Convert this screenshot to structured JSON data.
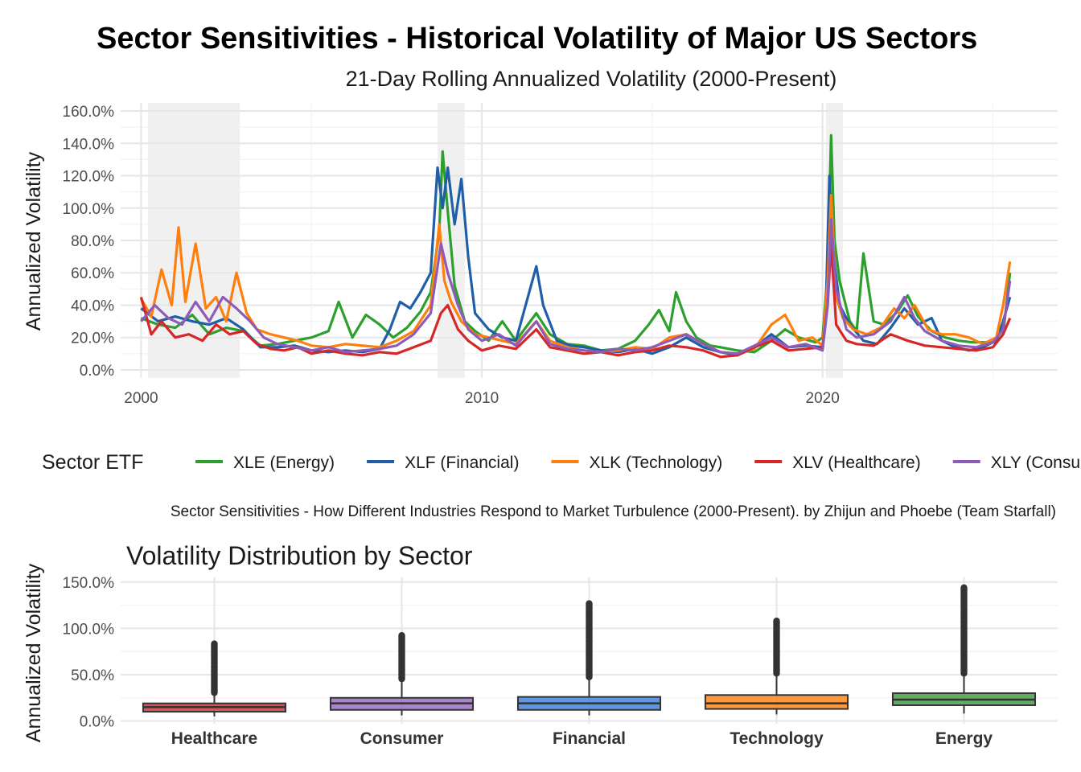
{
  "title": "Sector Sensitivities - Historical Volatility of Major US Sectors",
  "subtitle": "21-Day Rolling Annualized Volatility (2000-Present)",
  "caption": "Sector Sensitivities - How Different Industries Respond to Market Turbulence (2000-Present). by Zhijun and Phoebe (Team Starfall)",
  "legend_title": "Sector ETF",
  "chart_data": [
    {
      "type": "line",
      "ylabel": "Annualized Volatility",
      "xlim": [
        1999.4,
        2026.9
      ],
      "ylim": [
        -5,
        165
      ],
      "y_ticks": [
        0,
        20,
        40,
        60,
        80,
        100,
        120,
        140,
        160
      ],
      "y_tick_labels": [
        "0.0%",
        "20.0%",
        "40.0%",
        "60.0%",
        "80.0%",
        "100.0%",
        "120.0%",
        "140.0%",
        "160.0%"
      ],
      "x_ticks": [
        2000,
        2010,
        2020
      ],
      "x_tick_labels": [
        "2000",
        "2010",
        "2020"
      ],
      "grid": true,
      "legend_position": "bottom",
      "shaded_periods": [
        [
          2000.2,
          2002.9
        ],
        [
          2008.7,
          2009.5
        ],
        [
          2020.1,
          2020.6
        ]
      ],
      "series": [
        {
          "name": "XLE (Energy)",
          "color": "#2ca02c",
          "x": [
            2000.0,
            2000.5,
            2001.0,
            2001.5,
            2002.0,
            2002.5,
            2003.0,
            2003.5,
            2004.0,
            2004.5,
            2005.0,
            2005.5,
            2005.8,
            2006.2,
            2006.6,
            2007.0,
            2007.4,
            2007.8,
            2008.2,
            2008.5,
            2008.75,
            2008.85,
            2009.0,
            2009.2,
            2009.5,
            2009.8,
            2010.2,
            2010.6,
            2011.0,
            2011.6,
            2012.0,
            2012.5,
            2013.0,
            2013.5,
            2014.0,
            2014.5,
            2014.9,
            2015.2,
            2015.5,
            2015.7,
            2016.0,
            2016.3,
            2016.7,
            2017.0,
            2017.5,
            2018.0,
            2018.5,
            2018.9,
            2019.3,
            2019.8,
            2020.0,
            2020.15,
            2020.25,
            2020.35,
            2020.5,
            2020.8,
            2021.0,
            2021.2,
            2021.5,
            2021.8,
            2022.2,
            2022.5,
            2022.8,
            2023.2,
            2023.6,
            2024.0,
            2024.4,
            2024.8,
            2025.1,
            2025.3,
            2025.5
          ],
          "y": [
            32,
            28,
            26,
            34,
            22,
            26,
            24,
            15,
            16,
            18,
            20,
            24,
            42,
            20,
            34,
            28,
            20,
            26,
            36,
            48,
            85,
            135,
            98,
            52,
            30,
            24,
            18,
            30,
            18,
            35,
            22,
            16,
            15,
            12,
            13,
            18,
            28,
            37,
            24,
            48,
            30,
            20,
            15,
            14,
            12,
            11,
            18,
            25,
            20,
            17,
            20,
            60,
            145,
            80,
            55,
            30,
            24,
            72,
            30,
            28,
            36,
            46,
            33,
            24,
            20,
            18,
            17,
            17,
            17,
            22,
            60
          ]
        },
        {
          "name": "XLF (Financial)",
          "color": "#1f5fa8",
          "x": [
            2000.0,
            2000.5,
            2001.0,
            2001.5,
            2002.0,
            2002.5,
            2003.0,
            2003.5,
            2004.0,
            2004.5,
            2005.0,
            2005.5,
            2006.0,
            2006.5,
            2007.0,
            2007.3,
            2007.6,
            2007.9,
            2008.2,
            2008.5,
            2008.7,
            2008.85,
            2009.0,
            2009.2,
            2009.4,
            2009.6,
            2009.8,
            2010.2,
            2010.6,
            2011.0,
            2011.6,
            2011.8,
            2012.2,
            2012.6,
            2013.0,
            2013.5,
            2014.0,
            2014.5,
            2015.0,
            2015.5,
            2016.0,
            2016.5,
            2017.0,
            2017.5,
            2018.0,
            2018.5,
            2019.0,
            2019.5,
            2020.0,
            2020.1,
            2020.2,
            2020.3,
            2020.5,
            2020.8,
            2021.2,
            2021.6,
            2022.0,
            2022.4,
            2022.8,
            2023.2,
            2023.5,
            2023.9,
            2024.3,
            2024.7,
            2025.1,
            2025.3,
            2025.5
          ],
          "y": [
            38,
            30,
            33,
            30,
            28,
            32,
            25,
            14,
            14,
            15,
            12,
            11,
            12,
            11,
            13,
            25,
            42,
            38,
            48,
            60,
            125,
            100,
            125,
            90,
            118,
            70,
            35,
            25,
            20,
            18,
            64,
            40,
            18,
            15,
            14,
            12,
            11,
            13,
            10,
            14,
            20,
            14,
            11,
            9,
            14,
            22,
            14,
            15,
            14,
            40,
            120,
            75,
            40,
            28,
            18,
            16,
            26,
            38,
            28,
            32,
            18,
            14,
            12,
            14,
            18,
            30,
            45
          ]
        },
        {
          "name": "XLK (Technology)",
          "color": "#ff7f0e",
          "x": [
            2000.0,
            2000.3,
            2000.6,
            2000.9,
            2001.1,
            2001.3,
            2001.6,
            2001.9,
            2002.2,
            2002.5,
            2002.8,
            2003.1,
            2003.4,
            2003.8,
            2004.2,
            2004.6,
            2005.0,
            2005.5,
            2006.0,
            2006.5,
            2007.0,
            2007.5,
            2008.0,
            2008.5,
            2008.75,
            2008.9,
            2009.1,
            2009.4,
            2009.8,
            2010.2,
            2010.6,
            2011.0,
            2011.6,
            2012.0,
            2012.5,
            2013.0,
            2013.5,
            2014.0,
            2014.5,
            2015.0,
            2015.5,
            2016.0,
            2016.5,
            2017.0,
            2017.5,
            2018.0,
            2018.5,
            2018.9,
            2019.3,
            2019.7,
            2020.0,
            2020.15,
            2020.25,
            2020.4,
            2020.6,
            2020.9,
            2021.3,
            2021.7,
            2022.1,
            2022.4,
            2022.7,
            2023.1,
            2023.5,
            2023.9,
            2024.3,
            2024.7,
            2025.1,
            2025.3,
            2025.5
          ],
          "y": [
            44,
            33,
            62,
            40,
            88,
            42,
            78,
            38,
            45,
            30,
            60,
            35,
            25,
            22,
            20,
            18,
            15,
            14,
            16,
            15,
            14,
            18,
            24,
            40,
            90,
            55,
            42,
            30,
            22,
            20,
            18,
            16,
            30,
            18,
            14,
            12,
            11,
            12,
            14,
            13,
            20,
            22,
            16,
            11,
            10,
            13,
            28,
            34,
            18,
            20,
            15,
            55,
            108,
            45,
            32,
            25,
            22,
            26,
            38,
            32,
            40,
            25,
            22,
            22,
            20,
            16,
            20,
            40,
            67
          ]
        },
        {
          "name": "XLV (Healthcare)",
          "color": "#d62728",
          "x": [
            2000.0,
            2000.3,
            2000.6,
            2001.0,
            2001.4,
            2001.8,
            2002.2,
            2002.6,
            2003.0,
            2003.4,
            2003.8,
            2004.2,
            2004.6,
            2005.0,
            2005.5,
            2006.0,
            2006.5,
            2007.0,
            2007.5,
            2008.0,
            2008.5,
            2008.8,
            2009.0,
            2009.3,
            2009.6,
            2010.0,
            2010.5,
            2011.0,
            2011.6,
            2012.0,
            2012.5,
            2013.0,
            2013.5,
            2014.0,
            2014.5,
            2015.0,
            2015.5,
            2016.0,
            2016.5,
            2017.0,
            2017.5,
            2018.0,
            2018.5,
            2019.0,
            2019.5,
            2020.0,
            2020.15,
            2020.25,
            2020.4,
            2020.7,
            2021.0,
            2021.5,
            2022.0,
            2022.5,
            2023.0,
            2023.5,
            2024.0,
            2024.5,
            2025.0,
            2025.3,
            2025.5
          ],
          "y": [
            45,
            22,
            30,
            20,
            22,
            18,
            28,
            22,
            24,
            16,
            13,
            12,
            14,
            10,
            12,
            10,
            9,
            11,
            10,
            14,
            18,
            35,
            40,
            25,
            18,
            12,
            15,
            13,
            25,
            14,
            12,
            10,
            11,
            9,
            11,
            12,
            15,
            14,
            12,
            8,
            9,
            14,
            18,
            12,
            13,
            14,
            40,
            78,
            28,
            18,
            16,
            15,
            22,
            18,
            15,
            14,
            13,
            12,
            14,
            22,
            32
          ]
        },
        {
          "name": "XLY (Consumer)",
          "color": "#8e5cb8",
          "x": [
            2000.0,
            2000.4,
            2000.8,
            2001.2,
            2001.6,
            2002.0,
            2002.4,
            2002.8,
            2003.2,
            2003.6,
            2004.0,
            2004.5,
            2005.0,
            2005.5,
            2006.0,
            2006.5,
            2007.0,
            2007.5,
            2008.0,
            2008.5,
            2008.8,
            2009.0,
            2009.3,
            2009.6,
            2010.0,
            2010.5,
            2011.0,
            2011.6,
            2012.0,
            2012.5,
            2013.0,
            2013.5,
            2014.0,
            2014.5,
            2015.0,
            2015.5,
            2016.0,
            2016.5,
            2017.0,
            2017.5,
            2018.0,
            2018.5,
            2019.0,
            2019.5,
            2020.0,
            2020.15,
            2020.25,
            2020.4,
            2020.7,
            2021.0,
            2021.5,
            2022.0,
            2022.4,
            2022.7,
            2023.0,
            2023.5,
            2024.0,
            2024.5,
            2025.0,
            2025.3,
            2025.5
          ],
          "y": [
            30,
            40,
            32,
            28,
            42,
            30,
            45,
            38,
            30,
            20,
            16,
            14,
            12,
            14,
            11,
            12,
            13,
            15,
            22,
            35,
            78,
            60,
            40,
            25,
            18,
            22,
            15,
            30,
            16,
            13,
            12,
            11,
            13,
            12,
            14,
            18,
            22,
            16,
            11,
            10,
            15,
            20,
            14,
            16,
            12,
            40,
            93,
            50,
            25,
            20,
            22,
            30,
            45,
            32,
            24,
            18,
            15,
            14,
            17,
            25,
            55
          ]
        }
      ]
    },
    {
      "type": "box",
      "title": "Volatility Distribution by Sector",
      "ylabel": "Annualized Volatility",
      "ylim": [
        -3,
        155
      ],
      "y_ticks": [
        0,
        50,
        100,
        150
      ],
      "y_tick_labels": [
        "0.0%",
        "50.0%",
        "100.0%",
        "150.0%"
      ],
      "grid": true,
      "categories": [
        "Healthcare",
        "Consumer",
        "Financial",
        "Technology",
        "Energy"
      ],
      "colors": [
        "#d62728",
        "#9467bd",
        "#3b7dd8",
        "#ff7f0e",
        "#3a9a3a"
      ],
      "boxes": [
        {
          "min": 5,
          "q1": 10,
          "median": 15,
          "q3": 19,
          "whisker_high": 29,
          "outlier_max": 84
        },
        {
          "min": 6,
          "q1": 12,
          "median": 19,
          "q3": 25,
          "whisker_high": 44,
          "outlier_max": 93
        },
        {
          "min": 6,
          "q1": 12,
          "median": 19,
          "q3": 26,
          "whisker_high": 46,
          "outlier_max": 127
        },
        {
          "min": 7,
          "q1": 13,
          "median": 19,
          "q3": 28,
          "whisker_high": 50,
          "outlier_max": 108
        },
        {
          "min": 8,
          "q1": 17,
          "median": 23,
          "q3": 30,
          "whisker_high": 50,
          "outlier_max": 145
        }
      ]
    }
  ]
}
